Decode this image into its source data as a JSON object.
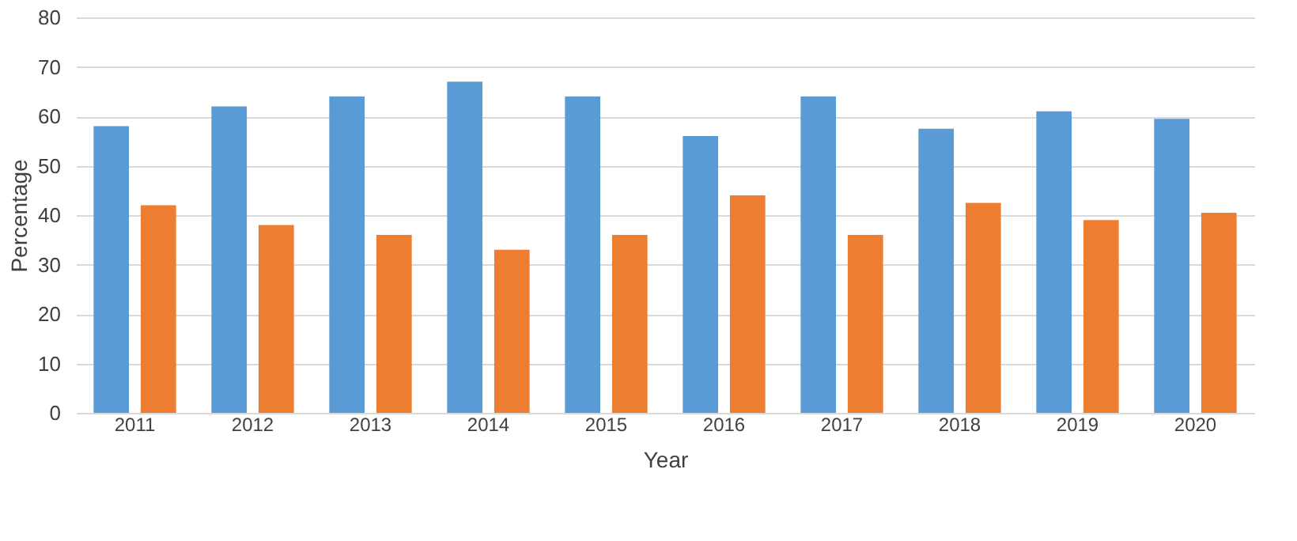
{
  "chart_data": {
    "type": "bar",
    "xlabel": "Year",
    "ylabel": "Percentage",
    "categories": [
      "2011",
      "2012",
      "2013",
      "2014",
      "2015",
      "2016",
      "2017",
      "2018",
      "2019",
      "2020"
    ],
    "series": [
      {
        "color": "#5b9bd5",
        "values": [
          58,
          62,
          64,
          67,
          64,
          56,
          64,
          57.5,
          61,
          59.5
        ]
      },
      {
        "color": "#ed7d31",
        "values": [
          42,
          38,
          36,
          33,
          36,
          44,
          36,
          42.5,
          39,
          40.5
        ]
      }
    ],
    "ylim": [
      0,
      80
    ],
    "yticks": [
      0,
      10,
      20,
      30,
      40,
      50,
      60,
      70,
      80
    ],
    "grid": "y",
    "legend": false
  }
}
